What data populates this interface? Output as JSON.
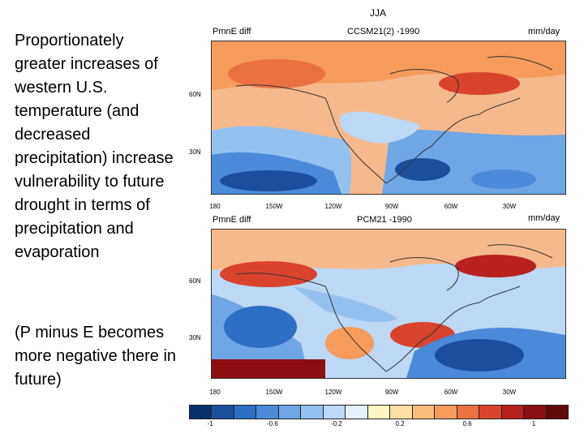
{
  "slide": {
    "text_main": "Proportionately greater increases of western U.S. temperature (and decreased precipitation) increase vulnerability to future drought in terms of precipitation and evaporation",
    "text_note": "(P minus E becomes more negative there in future)"
  },
  "figure": {
    "season": "JJA",
    "top": {
      "left_label": "PmnE diff",
      "center_label": "CCSM21(2) -1990",
      "unit": "mm/day"
    },
    "bottom": {
      "left_label": "PmnE diff",
      "center_label": "PCM21 -1990",
      "unit": "mm/day"
    },
    "lat_labels": [
      "60N",
      "30N"
    ],
    "lon_labels": [
      "180",
      "150W",
      "120W",
      "90W",
      "60W",
      "30W"
    ],
    "colorbar": {
      "labels": [
        "-1",
        "-0.6",
        "-0.2",
        "0.2",
        "0.6",
        "1"
      ],
      "colors": [
        "#08306b",
        "#1b4f9c",
        "#2d6fc2",
        "#4a8ad8",
        "#6ea6e6",
        "#94c2f0",
        "#bcd8f5",
        "#e6f0fb",
        "#fff6c4",
        "#fde0a6",
        "#fbbd7c",
        "#f59b5c",
        "#ea7142",
        "#d9432c",
        "#b8211e",
        "#8b0e12",
        "#5e0a0a"
      ]
    }
  }
}
